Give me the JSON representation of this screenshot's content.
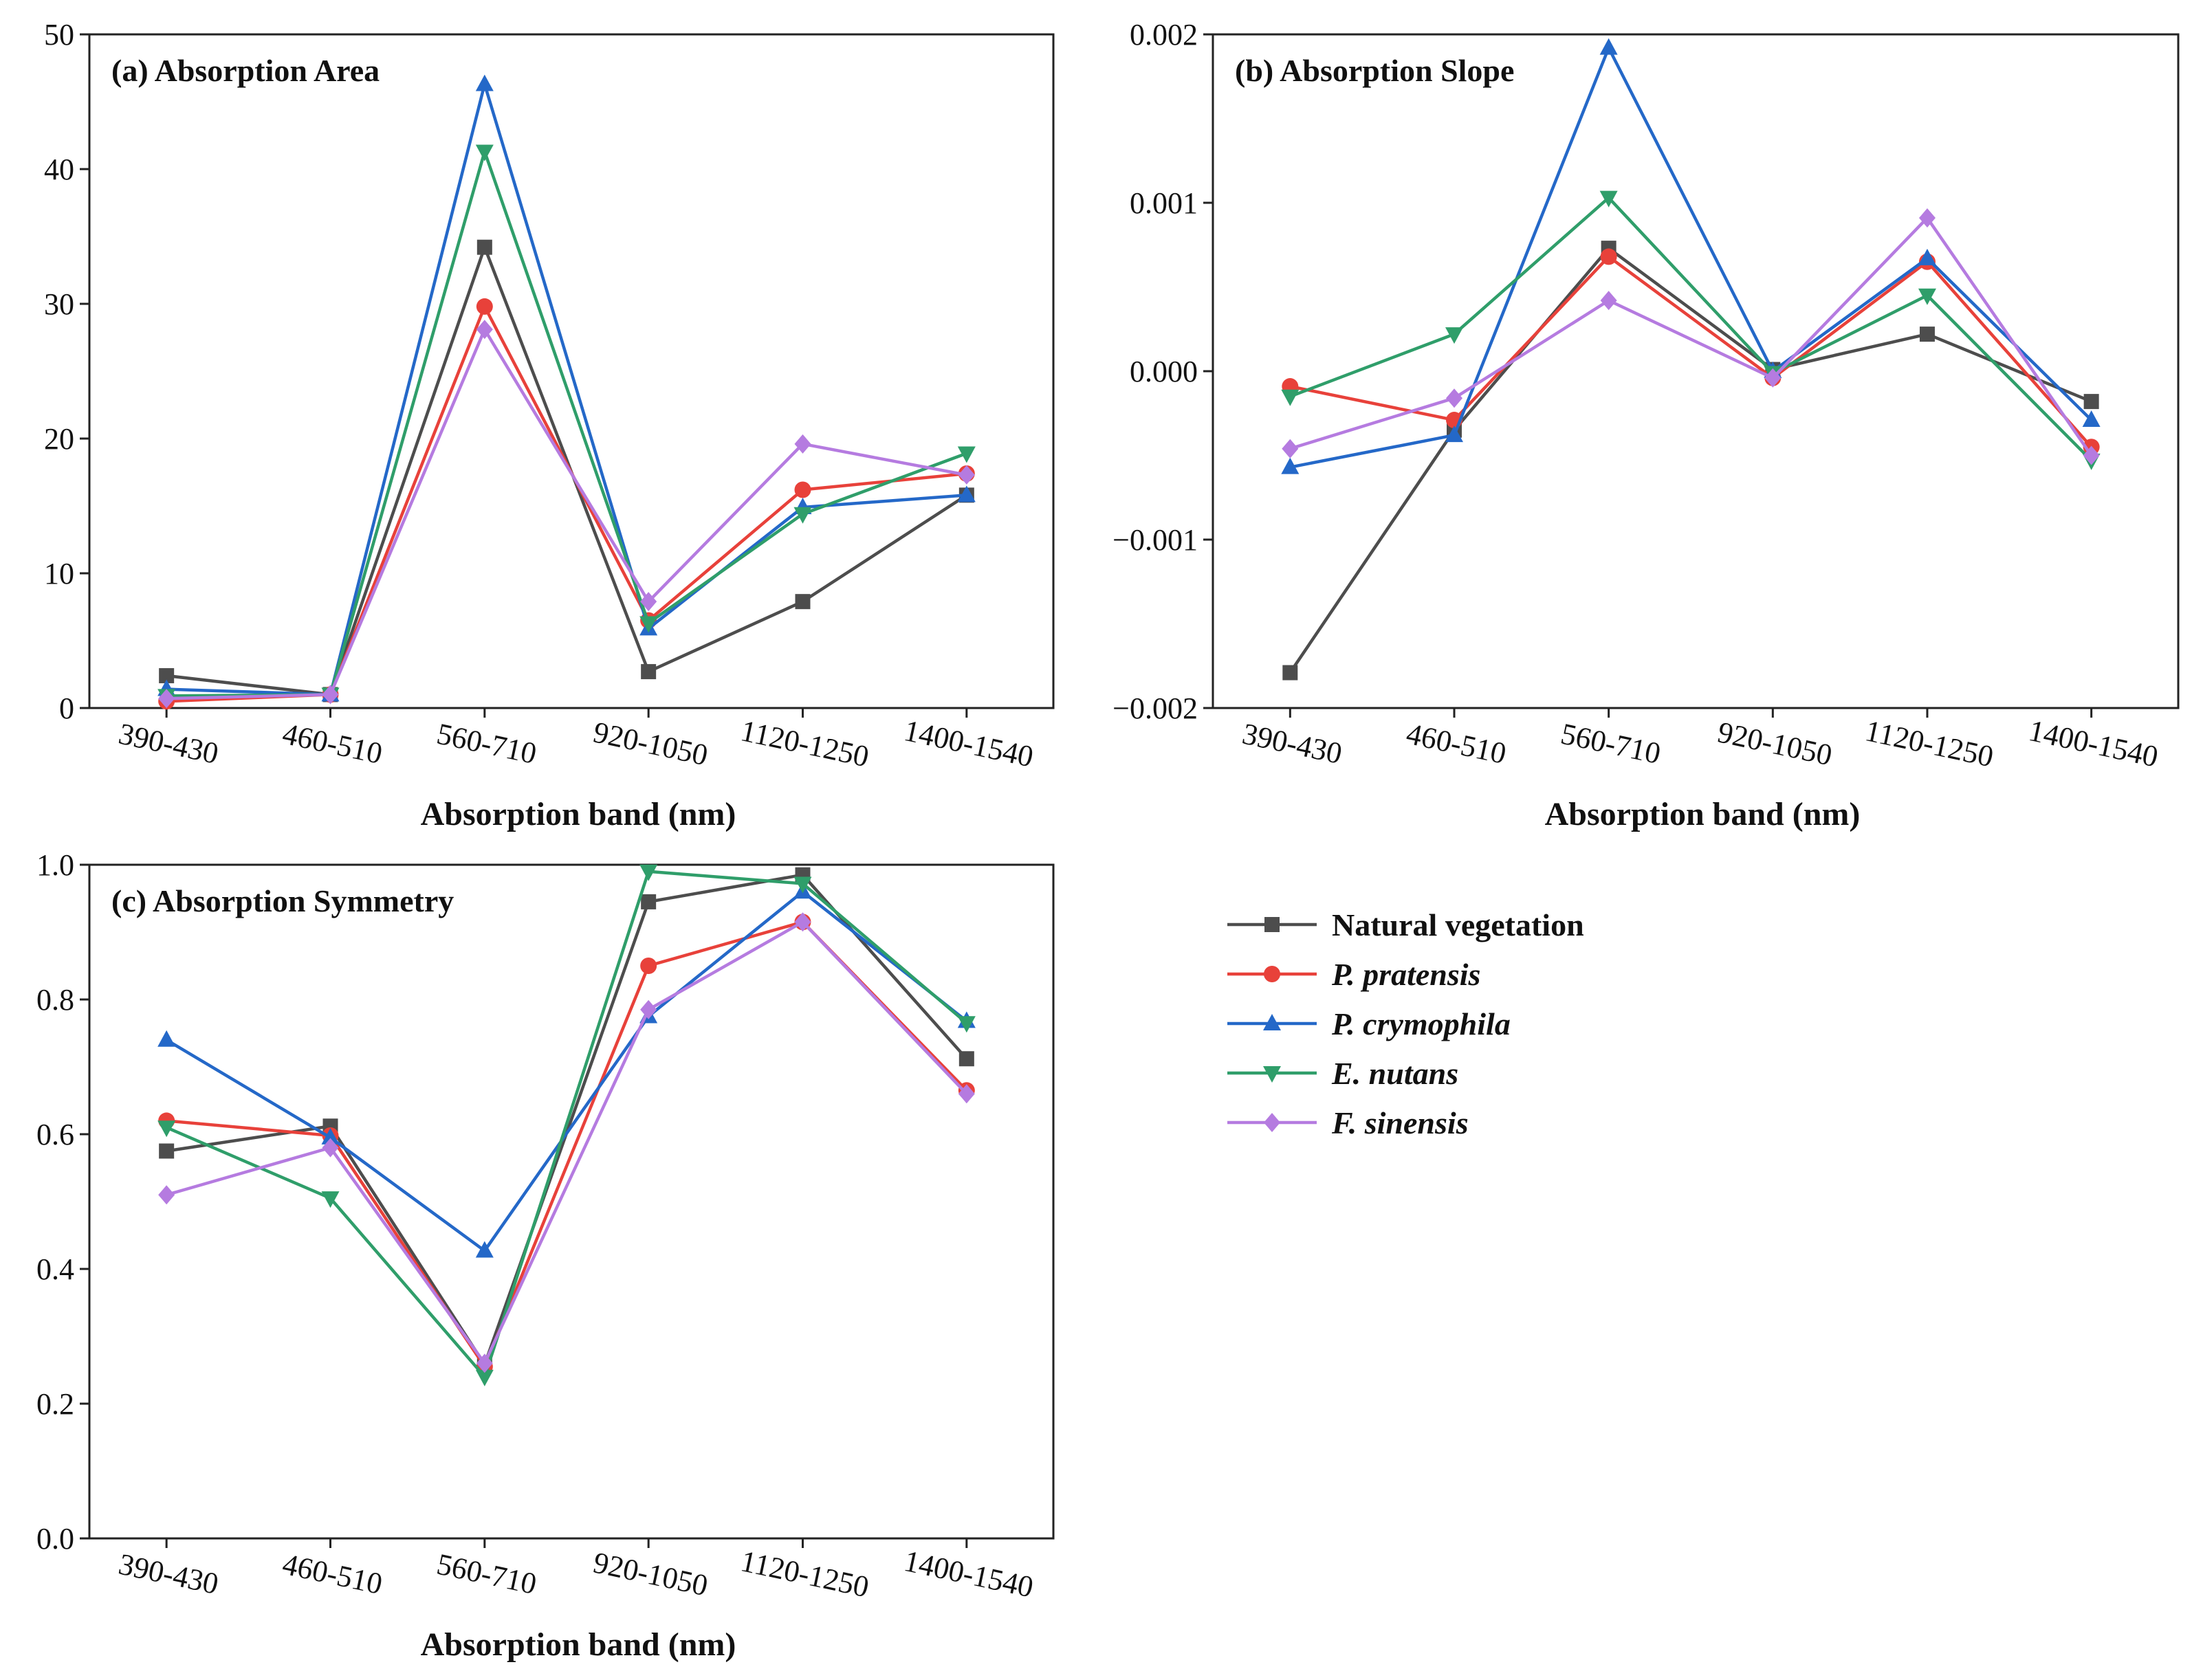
{
  "chart_data": [
    {
      "type": "line",
      "id": "a",
      "title": "(a) Absorption Area",
      "xlabel": "Absorption band (nm)",
      "ylabel": "",
      "categories": [
        "390-430",
        "460-510",
        "560-710",
        "920-1050",
        "1120-1250",
        "1400-1540"
      ],
      "ylim": [
        0,
        50
      ],
      "yticks": [
        0,
        10,
        20,
        30,
        40,
        50
      ],
      "ytick_labels": [
        "0",
        "10",
        "20",
        "30",
        "40",
        "50"
      ],
      "series": [
        {
          "name": "Natural vegetation",
          "values": [
            2.4,
            1.0,
            34.2,
            2.7,
            7.9,
            15.8
          ]
        },
        {
          "name": "P. pratensis",
          "values": [
            0.5,
            1.0,
            29.8,
            6.5,
            16.2,
            17.4
          ]
        },
        {
          "name": "P. crymophila",
          "values": [
            1.4,
            1.0,
            46.3,
            5.9,
            14.9,
            15.8
          ]
        },
        {
          "name": "E. nutans",
          "values": [
            0.9,
            1.0,
            41.3,
            6.3,
            14.4,
            18.9
          ]
        },
        {
          "name": "F. sinensis",
          "values": [
            0.7,
            1.0,
            28.1,
            7.9,
            19.6,
            17.3
          ]
        }
      ]
    },
    {
      "type": "line",
      "id": "b",
      "title": "(b) Absorption Slope",
      "xlabel": "Absorption band (nm)",
      "ylabel": "",
      "categories": [
        "390-430",
        "460-510",
        "560-710",
        "920-1050",
        "1120-1250",
        "1400-1540"
      ],
      "ylim": [
        -0.002,
        0.002
      ],
      "yticks": [
        -0.002,
        -0.001,
        0,
        0.001,
        0.002
      ],
      "ytick_labels": [
        "−0.002",
        "−0.001",
        "0.000",
        "0.001",
        "0.002"
      ],
      "series": [
        {
          "name": "Natural vegetation",
          "values": [
            -0.00179,
            -0.00035,
            0.00073,
            1e-05,
            0.00022,
            -0.00018
          ]
        },
        {
          "name": "P. pratensis",
          "values": [
            -9e-05,
            -0.00029,
            0.00068,
            -4e-05,
            0.00065,
            -0.00045
          ]
        },
        {
          "name": "P. crymophila",
          "values": [
            -0.00057,
            -0.00038,
            0.00192,
            0.0,
            0.00067,
            -0.00029
          ]
        },
        {
          "name": "E. nutans",
          "values": [
            -0.00015,
            0.00022,
            0.00103,
            -1e-05,
            0.00045,
            -0.00053
          ]
        },
        {
          "name": "F. sinensis",
          "values": [
            -0.00046,
            -0.00016,
            0.00042,
            -4e-05,
            0.00091,
            -0.0005
          ]
        }
      ]
    },
    {
      "type": "line",
      "id": "c",
      "title": "(c) Absorption Symmetry",
      "xlabel": "Absorption band (nm)",
      "ylabel": "",
      "categories": [
        "390-430",
        "460-510",
        "560-710",
        "920-1050",
        "1120-1250",
        "1400-1540"
      ],
      "ylim": [
        0,
        1.0
      ],
      "yticks": [
        0,
        0.2,
        0.4,
        0.6,
        0.8,
        1.0
      ],
      "ytick_labels": [
        "0.0",
        "0.2",
        "0.4",
        "0.6",
        "0.8",
        "1.0"
      ],
      "series": [
        {
          "name": "Natural vegetation",
          "values": [
            0.575,
            0.612,
            0.258,
            0.945,
            0.985,
            0.712
          ]
        },
        {
          "name": "P. pratensis",
          "values": [
            0.62,
            0.598,
            0.255,
            0.85,
            0.915,
            0.665
          ]
        },
        {
          "name": "P. crymophila",
          "values": [
            0.74,
            0.595,
            0.427,
            0.775,
            0.96,
            0.768
          ]
        },
        {
          "name": "E. nutans",
          "values": [
            0.61,
            0.505,
            0.24,
            0.99,
            0.972,
            0.765
          ]
        },
        {
          "name": "F. sinensis",
          "values": [
            0.51,
            0.58,
            0.26,
            0.785,
            0.915,
            0.66
          ]
        }
      ]
    }
  ],
  "legend": {
    "items": [
      {
        "name": "Natural vegetation",
        "italic": false,
        "color": "#4d4d4d",
        "marker": "square"
      },
      {
        "name": "P. pratensis",
        "italic": true,
        "color": "#e8413a",
        "marker": "circle"
      },
      {
        "name": "P. crymophila",
        "italic": true,
        "color": "#2468c8",
        "marker": "triangle-up"
      },
      {
        "name": "E. nutans",
        "italic": true,
        "color": "#2f9e6a",
        "marker": "triangle-down"
      },
      {
        "name": "F. sinensis",
        "italic": true,
        "color": "#b57be0",
        "marker": "diamond"
      }
    ]
  }
}
